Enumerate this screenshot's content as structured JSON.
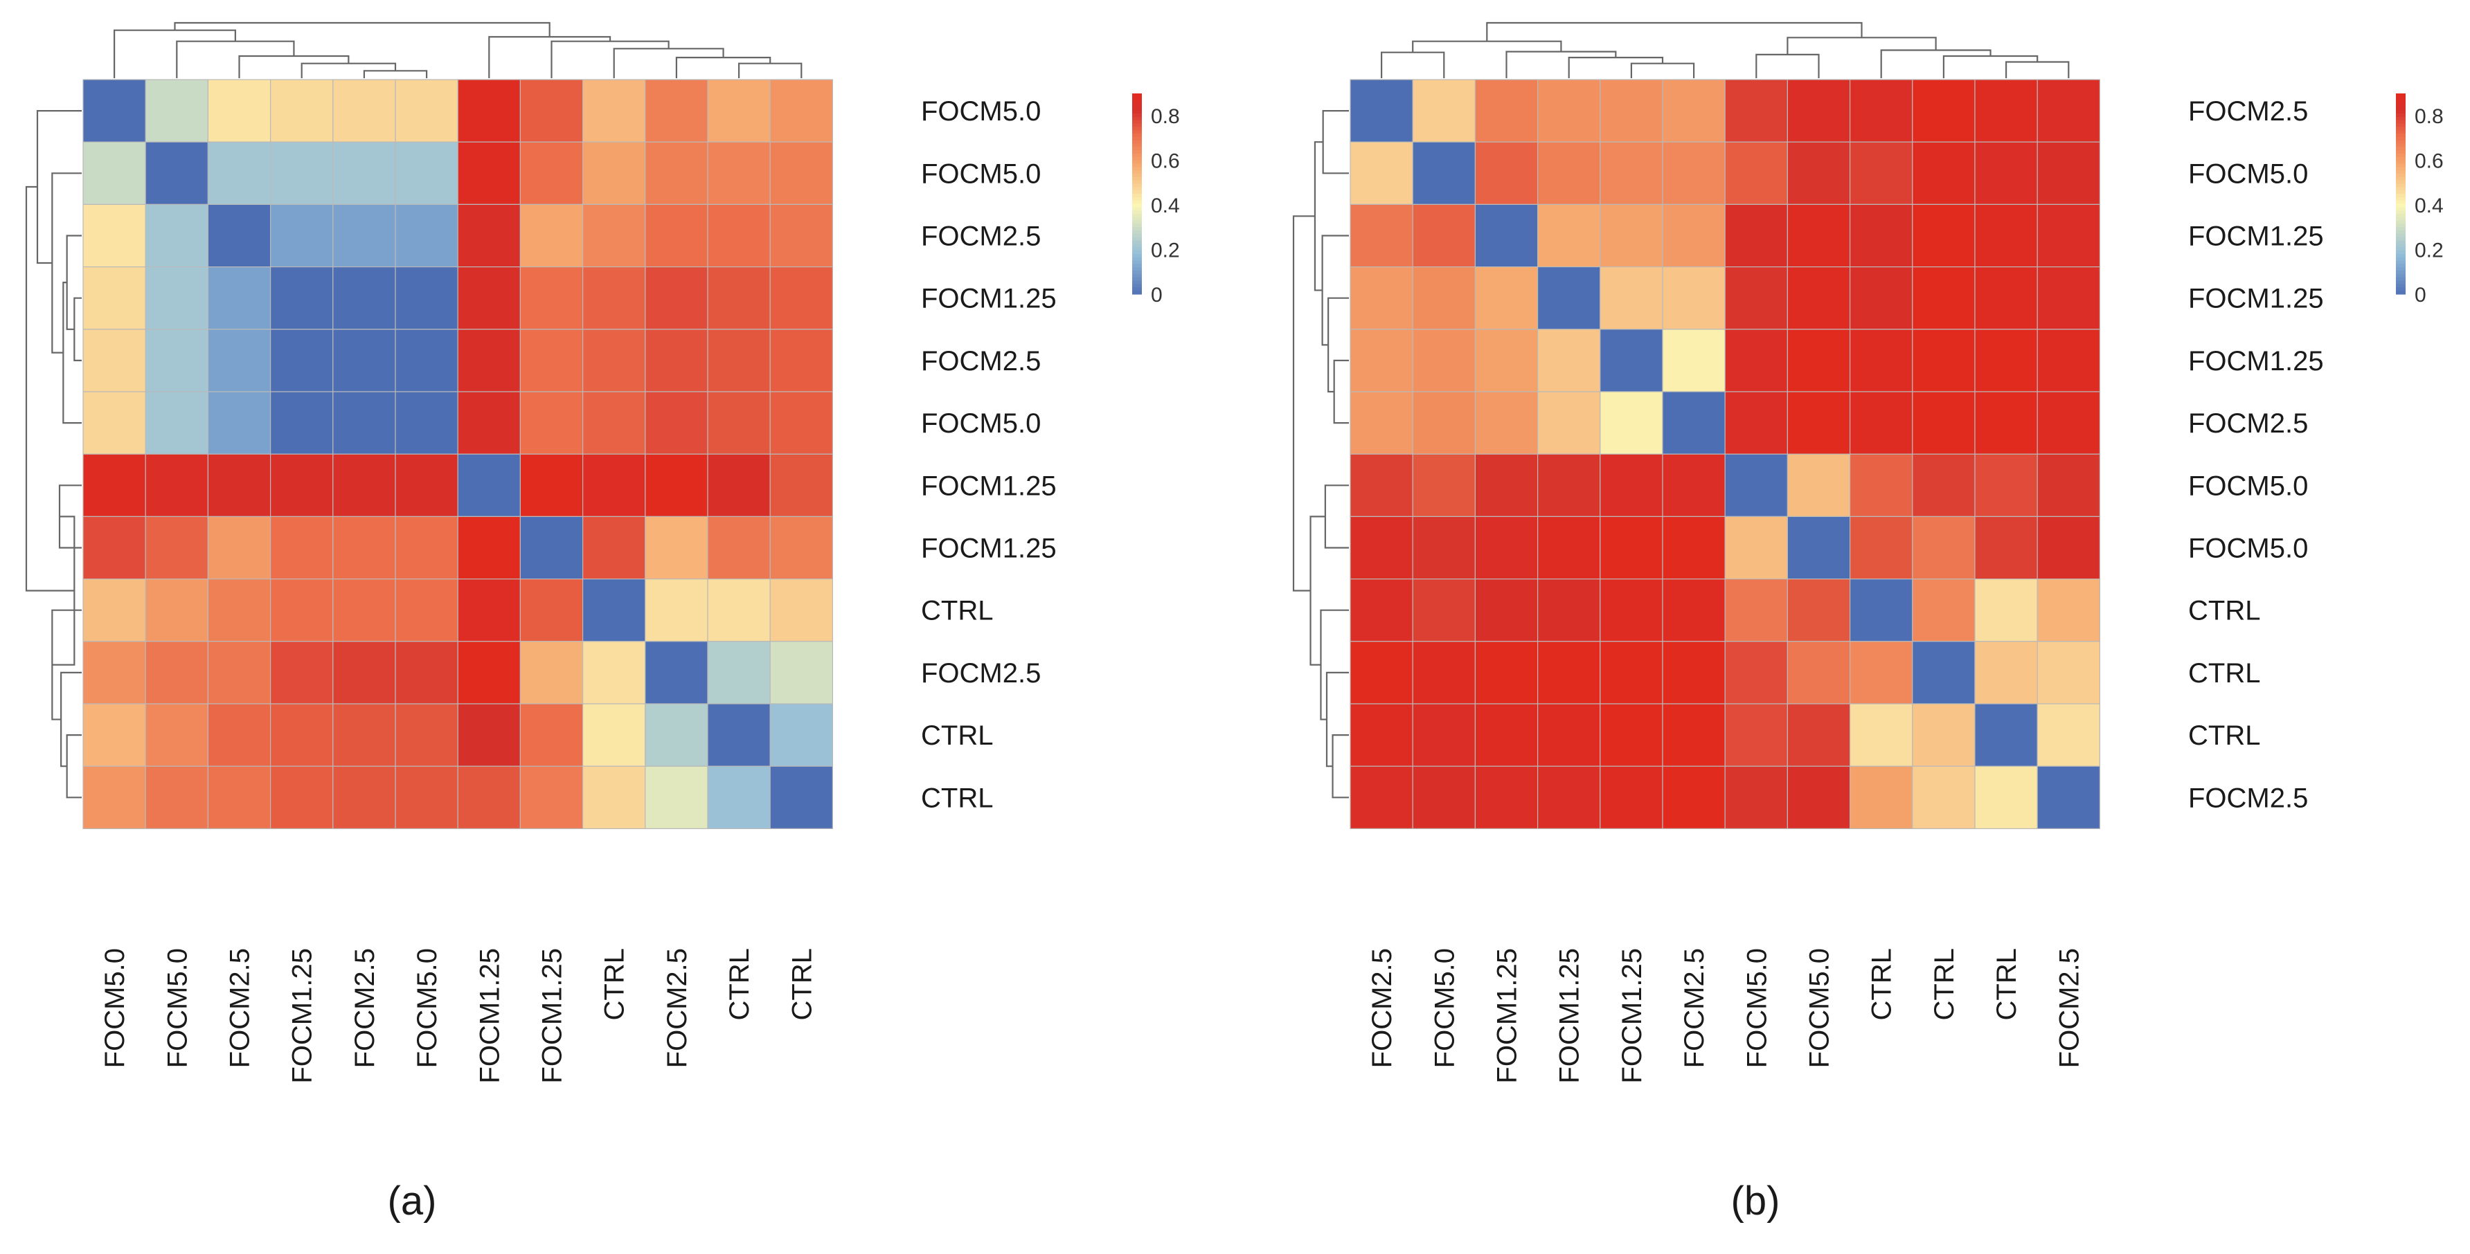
{
  "chart_data": [
    {
      "type": "heatmap",
      "panel_label": "(a)",
      "row_labels": [
        "FOCM5.0",
        "FOCM5.0",
        "FOCM2.5",
        "FOCM1.25",
        "FOCM2.5",
        "FOCM5.0",
        "FOCM1.25",
        "FOCM1.25",
        "CTRL",
        "FOCM2.5",
        "CTRL",
        "CTRL"
      ],
      "col_labels": [
        "FOCM5.0",
        "FOCM5.0",
        "FOCM2.5",
        "FOCM1.25",
        "FOCM2.5",
        "FOCM5.0",
        "FOCM1.25",
        "FOCM1.25",
        "CTRL",
        "FOCM2.5",
        "CTRL",
        "CTRL"
      ],
      "values": [
        [
          0.0,
          0.3,
          0.45,
          0.47,
          0.48,
          0.48,
          0.88,
          0.75,
          0.55,
          0.68,
          0.58,
          0.63
        ],
        [
          0.3,
          0.0,
          0.22,
          0.22,
          0.22,
          0.22,
          0.88,
          0.72,
          0.6,
          0.68,
          0.67,
          0.68
        ],
        [
          0.45,
          0.22,
          0.0,
          0.12,
          0.12,
          0.12,
          0.84,
          0.59,
          0.66,
          0.72,
          0.72,
          0.7
        ],
        [
          0.47,
          0.22,
          0.12,
          0.0,
          0.0,
          0.0,
          0.84,
          0.72,
          0.74,
          0.78,
          0.76,
          0.75
        ],
        [
          0.48,
          0.22,
          0.12,
          0.0,
          0.0,
          0.0,
          0.84,
          0.72,
          0.74,
          0.77,
          0.76,
          0.75
        ],
        [
          0.48,
          0.22,
          0.12,
          0.0,
          0.0,
          0.0,
          0.84,
          0.72,
          0.74,
          0.78,
          0.76,
          0.75
        ],
        [
          0.88,
          0.86,
          0.84,
          0.84,
          0.84,
          0.84,
          0.0,
          0.9,
          0.87,
          0.92,
          0.84,
          0.76
        ],
        [
          0.78,
          0.74,
          0.62,
          0.72,
          0.72,
          0.72,
          0.9,
          0.0,
          0.77,
          0.56,
          0.7,
          0.68
        ],
        [
          0.54,
          0.62,
          0.68,
          0.72,
          0.72,
          0.72,
          0.87,
          0.75,
          0.0,
          0.46,
          0.46,
          0.5
        ],
        [
          0.64,
          0.7,
          0.7,
          0.78,
          0.8,
          0.8,
          0.92,
          0.57,
          0.46,
          0.0,
          0.25,
          0.32
        ],
        [
          0.56,
          0.66,
          0.73,
          0.75,
          0.76,
          0.76,
          0.83,
          0.72,
          0.44,
          0.25,
          0.0,
          0.2
        ],
        [
          0.63,
          0.7,
          0.71,
          0.75,
          0.76,
          0.76,
          0.76,
          0.69,
          0.48,
          0.35,
          0.2,
          0.0
        ]
      ],
      "colorbar": {
        "min": 0,
        "max": 0.9,
        "ticks": [
          "0.8",
          "0.6",
          "0.4",
          "0.2",
          "0"
        ],
        "tick_values": [
          0.8,
          0.6,
          0.4,
          0.2,
          0
        ]
      },
      "colors": {
        "low": "#4e6eb3",
        "mid": "#fbf6b4",
        "high": "#d6302b"
      },
      "row_dendrogram": [
        [
          6,
          7,
          3
        ],
        [
          3,
          4,
          1
        ],
        [
          2,
          [
            3,
            4
          ],
          2
        ],
        [
          5,
          [
            2,
            [
              3,
              4
            ]
          ],
          2.5
        ],
        [
          1,
          [
            5,
            [
              2,
              [
                3,
                4
              ]
            ]
          ],
          4
        ],
        [
          0,
          [
            1,
            [
              5,
              [
                2,
                [
                  3,
                  4
                ]
              ]
            ]
          ],
          6
        ],
        [
          10,
          11,
          2
        ],
        [
          9,
          [
            10,
            11
          ],
          2.8
        ],
        [
          8,
          [
            9,
            [
              10,
              11
            ]
          ],
          4
        ],
        [
          [
            8,
            [
              9,
              [
                10,
                11
              ]
            ]
          ],
          [
            [
              6,
              7
            ]
          ],
          5.2
        ],
        [
          [
            0,
            [
              1,
              [
                5,
                [
                  2,
                  [
                    3,
                    4
                  ]
                ]
              ]
            ]
          ],
          [
            [
              8,
              [
                9,
                [
                  10,
                  11
                ]
              ]
            ],
            [
              6,
              7
            ]
          ],
          7.5
        ]
      ],
      "col_dendrogram": [
        [
          4,
          5,
          1
        ],
        [
          3,
          [
            4,
            5
          ],
          2
        ],
        [
          2,
          [
            3,
            [
              4,
              5
            ]
          ],
          3
        ],
        [
          1,
          [
            2,
            [
              3,
              [
                4,
                5
              ]
            ]
          ],
          5
        ],
        [
          0,
          [
            1,
            [
              2,
              [
                3,
                [
                  4,
                  5
                ]
              ]
            ]
          ],
          6.5
        ],
        [
          10,
          11,
          2
        ],
        [
          9,
          [
            10,
            11
          ],
          2.8
        ],
        [
          8,
          [
            9,
            [
              10,
              11
            ]
          ],
          4
        ],
        [
          7,
          [
            8,
            [
              9,
              [
                10,
                11
              ]
            ]
          ],
          5
        ],
        [
          6,
          [
            7,
            [
              8,
              [
                9,
                [
                  10,
                  11
                ]
              ]
            ]
          ],
          5.6
        ],
        [
          [
            0,
            [
              1,
              [
                2,
                [
                  3,
                  [
                    4,
                    5
                  ]
                ]
              ]
            ]
          ],
          [
            6,
            [
              7,
              [
                8,
                [
                  9,
                  [
                    10,
                    11
                  ]
                ]
              ]
            ]
          ],
          7.5
        ]
      ]
    },
    {
      "type": "heatmap",
      "panel_label": "(b)",
      "row_labels": [
        "FOCM2.5",
        "FOCM5.0",
        "FOCM1.25",
        "FOCM1.25",
        "FOCM1.25",
        "FOCM2.5",
        "FOCM5.0",
        "FOCM5.0",
        "CTRL",
        "CTRL",
        "CTRL",
        "FOCM2.5"
      ],
      "col_labels": [
        "FOCM2.5",
        "FOCM5.0",
        "FOCM1.25",
        "FOCM1.25",
        "FOCM1.25",
        "FOCM2.5",
        "FOCM5.0",
        "FOCM5.0",
        "CTRL",
        "CTRL",
        "CTRL",
        "FOCM2.5"
      ],
      "values": [
        [
          0.0,
          0.5,
          0.68,
          0.64,
          0.64,
          0.62,
          0.8,
          0.86,
          0.86,
          0.9,
          0.88,
          0.86
        ],
        [
          0.5,
          0.0,
          0.74,
          0.68,
          0.66,
          0.66,
          0.75,
          0.82,
          0.8,
          0.88,
          0.86,
          0.84
        ],
        [
          0.7,
          0.74,
          0.0,
          0.58,
          0.6,
          0.62,
          0.84,
          0.88,
          0.84,
          0.9,
          0.88,
          0.86
        ],
        [
          0.62,
          0.65,
          0.58,
          0.0,
          0.52,
          0.52,
          0.82,
          0.88,
          0.84,
          0.9,
          0.88,
          0.86
        ],
        [
          0.62,
          0.64,
          0.6,
          0.52,
          0.0,
          0.42,
          0.86,
          0.9,
          0.88,
          0.9,
          0.9,
          0.88
        ],
        [
          0.62,
          0.65,
          0.62,
          0.52,
          0.42,
          0.0,
          0.86,
          0.9,
          0.88,
          0.9,
          0.9,
          0.88
        ],
        [
          0.8,
          0.76,
          0.82,
          0.82,
          0.86,
          0.86,
          0.0,
          0.54,
          0.74,
          0.8,
          0.78,
          0.82
        ],
        [
          0.86,
          0.82,
          0.86,
          0.88,
          0.9,
          0.9,
          0.54,
          0.0,
          0.76,
          0.7,
          0.8,
          0.84
        ],
        [
          0.86,
          0.8,
          0.84,
          0.84,
          0.88,
          0.88,
          0.7,
          0.76,
          0.0,
          0.66,
          0.46,
          0.56
        ],
        [
          0.9,
          0.88,
          0.9,
          0.9,
          0.9,
          0.9,
          0.78,
          0.7,
          0.66,
          0.0,
          0.52,
          0.5
        ],
        [
          0.88,
          0.86,
          0.88,
          0.88,
          0.9,
          0.9,
          0.78,
          0.8,
          0.46,
          0.52,
          0.0,
          0.46
        ],
        [
          0.86,
          0.84,
          0.86,
          0.86,
          0.88,
          0.9,
          0.82,
          0.84,
          0.6,
          0.5,
          0.44,
          0.0
        ]
      ],
      "colorbar": {
        "min": 0,
        "max": 0.9,
        "ticks": [
          "0.8",
          "0.6",
          "0.4",
          "0.2",
          "0"
        ],
        "tick_values": [
          0.8,
          0.6,
          0.4,
          0.2,
          0
        ]
      },
      "colors": {
        "low": "#4e6eb3",
        "mid": "#fbf6b4",
        "high": "#d6302b"
      },
      "row_dendrogram": [
        [
          0,
          1,
          3.5
        ],
        [
          4,
          5,
          2
        ],
        [
          3,
          [
            4,
            5
          ],
          2.8
        ],
        [
          2,
          [
            3,
            [
              4,
              5
            ]
          ],
          3.6
        ],
        [
          [
            0,
            1
          ],
          [
            2,
            [
              3,
              [
                4,
                5
              ]
            ]
          ],
          4.6
        ],
        [
          6,
          7,
          3.2
        ],
        [
          10,
          11,
          2.2
        ],
        [
          9,
          [
            10,
            11
          ],
          3
        ],
        [
          8,
          [
            9,
            [
              10,
              11
            ]
          ],
          3.8
        ],
        [
          [
            6,
            7
          ],
          [
            8,
            [
              9,
              [
                10,
                11
              ]
            ]
          ],
          5.2
        ],
        [
          [
            [
              0,
              1
            ],
            [
              2,
              [
                3,
                [
                  4,
                  5
                ]
              ]
            ]
          ],
          [
            [
              6,
              7
            ],
            [
              8,
              [
                9,
                [
                  10,
                  11
                ]
              ]
            ]
          ],
          7.5
        ]
      ],
      "col_dendrogram": [
        [
          0,
          1,
          3.5
        ],
        [
          4,
          5,
          2
        ],
        [
          3,
          [
            4,
            5
          ],
          2.8
        ],
        [
          2,
          [
            3,
            [
              4,
              5
            ]
          ],
          3.6
        ],
        [
          [
            0,
            1
          ],
          [
            2,
            [
              3,
              [
                4,
                5
              ]
            ]
          ],
          5
        ],
        [
          6,
          7,
          3.2
        ],
        [
          10,
          11,
          2.2
        ],
        [
          9,
          [
            10,
            11
          ],
          3
        ],
        [
          8,
          [
            9,
            [
              10,
              11
            ]
          ],
          3.8
        ],
        [
          [
            6,
            7
          ],
          [
            8,
            [
              9,
              [
                10,
                11
              ]
            ]
          ],
          5.5
        ],
        [
          [
            [
              0,
              1
            ],
            [
              2,
              [
                3,
                [
                  4,
                  5
                ]
              ]
            ]
          ],
          [
            [
              6,
              7
            ],
            [
              8,
              [
                9,
                [
                  10,
                  11
                ]
              ]
            ]
          ],
          7.5
        ]
      ]
    }
  ]
}
